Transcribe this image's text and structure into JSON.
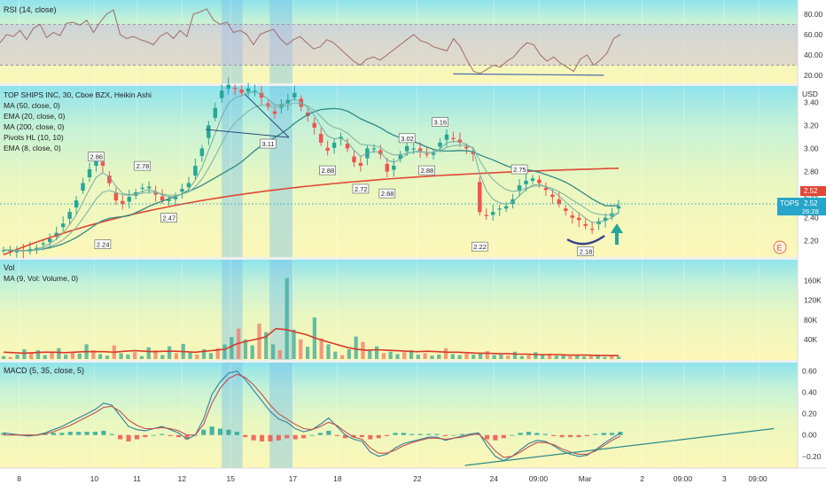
{
  "chart_data": [
    {
      "type": "line",
      "panel": "rsi",
      "title": "RSI (14, close)",
      "yticks": [
        20,
        40,
        60,
        80
      ],
      "ylim": [
        14,
        92
      ],
      "upper_band": 70,
      "lower_band": 30,
      "series": [
        {
          "color": "#a06a6a",
          "values": [
            52,
            60,
            58,
            64,
            55,
            66,
            70,
            57,
            62,
            59,
            71,
            72,
            69,
            74,
            62,
            72,
            80,
            84,
            60,
            56,
            58,
            55,
            53,
            50,
            58,
            62,
            56,
            64,
            58,
            80,
            82,
            85,
            74,
            70,
            72,
            62,
            64,
            60,
            50,
            60,
            63,
            65,
            56,
            50,
            55,
            58,
            52,
            46,
            48,
            55,
            52,
            46,
            40,
            34,
            30,
            36,
            38,
            35,
            40,
            45,
            50,
            55,
            60,
            54,
            52,
            48,
            46,
            44,
            56,
            48,
            35,
            24,
            22,
            26,
            30,
            28,
            34,
            38,
            46,
            52,
            50,
            40,
            34,
            38,
            32,
            28,
            24,
            36,
            40,
            30,
            35,
            42,
            56,
            60
          ]
        }
      ],
      "trendline": {
        "from": [
          0.568,
          21.5
        ],
        "to": [
          0.757,
          20.2
        ],
        "color": "#4a6aa8"
      }
    },
    {
      "type": "line",
      "panel": "price",
      "title": "TOP SHIPS INC, 30, Cboe BZX, Heikin Ashi",
      "unit": "USD",
      "legend": [
        "MA (50, close, 0)",
        "EMA (20, close, 0)",
        "MA (200, close, 0)",
        "Pivots HL (10, 10)",
        "EMA (8, close, 0)"
      ],
      "yticks": [
        2.2,
        2.4,
        2.6,
        2.8,
        3.0,
        3.2,
        3.4
      ],
      "ylim": [
        2.06,
        3.54
      ],
      "last_price": "2.52",
      "last_label": "TOPS",
      "countdown": "26:28",
      "last_price_tag": "2.52",
      "candles_close": [
        2.12,
        2.12,
        2.11,
        2.11,
        2.13,
        2.14,
        2.18,
        2.22,
        2.27,
        2.35,
        2.45,
        2.55,
        2.7,
        2.82,
        2.9,
        2.85,
        2.7,
        2.55,
        2.52,
        2.58,
        2.62,
        2.66,
        2.67,
        2.6,
        2.55,
        2.56,
        2.58,
        2.65,
        2.7,
        2.85,
        3.0,
        3.2,
        3.35,
        3.5,
        3.55,
        3.52,
        3.48,
        3.52,
        3.5,
        3.44,
        3.36,
        3.3,
        3.38,
        3.42,
        3.48,
        3.36,
        3.28,
        3.18,
        3.05,
        2.98,
        3.05,
        3.1,
        3.0,
        2.88,
        2.85,
        3.0,
        3.0,
        2.95,
        2.8,
        2.85,
        2.95,
        3.02,
        3.0,
        2.98,
        2.95,
        2.96,
        3.05,
        3.12,
        3.08,
        3.05,
        3.0,
        2.95,
        2.45,
        2.42,
        2.45,
        2.48,
        2.5,
        2.56,
        2.68,
        2.72,
        2.74,
        2.7,
        2.64,
        2.58,
        2.52,
        2.46,
        2.4,
        2.38,
        2.33,
        2.3,
        2.37,
        2.4,
        2.44,
        2.5
      ],
      "pivots": [
        {
          "label": "2.86",
          "value": 2.86,
          "pos": "high"
        },
        {
          "label": "2.78",
          "value": 2.78,
          "pos": "high"
        },
        {
          "label": "2.47",
          "value": 2.47,
          "pos": "low"
        },
        {
          "label": "2.24",
          "value": 2.24,
          "pos": "low"
        },
        {
          "label": "3.11",
          "value": 3.11,
          "pos": "low"
        },
        {
          "label": "2.88",
          "value": 2.88,
          "pos": "low"
        },
        {
          "label": "2.72",
          "value": 2.72,
          "pos": "low"
        },
        {
          "label": "2.68",
          "value": 2.68,
          "pos": "low"
        },
        {
          "label": "3.02",
          "value": 3.02,
          "pos": "high"
        },
        {
          "label": "2.88",
          "value": 2.88,
          "pos": "low"
        },
        {
          "label": "3.16",
          "value": 3.16,
          "pos": "high"
        },
        {
          "label": "2.75",
          "value": 2.75,
          "pos": "high"
        },
        {
          "label": "2.22",
          "value": 2.22,
          "pos": "low"
        },
        {
          "label": "2.18",
          "value": 2.18,
          "pos": "low"
        }
      ],
      "colors": {
        "up": "#26a69a",
        "down": "#ef5350",
        "ma200": "#e04836",
        "ma50": "#2f8a87",
        "ema": "#7fb7a8"
      }
    },
    {
      "type": "bar",
      "panel": "volume",
      "title": "Vol",
      "subtitle": "MA (9, Vol: Volume, 0)",
      "yticks": [
        "160K",
        "120K",
        "80K",
        "40K"
      ],
      "ytick_values": [
        160000,
        120000,
        80000,
        40000
      ],
      "ylim": [
        0,
        190000
      ],
      "values": [
        6000,
        4000,
        9000,
        20000,
        12000,
        18000,
        8000,
        15000,
        22000,
        9000,
        14000,
        11000,
        30000,
        18000,
        10000,
        7000,
        28000,
        12000,
        9000,
        14000,
        6000,
        24000,
        18000,
        8000,
        26000,
        12000,
        31000,
        14000,
        9000,
        20000,
        12000,
        22000,
        30000,
        45000,
        62000,
        40000,
        28000,
        72000,
        55000,
        30000,
        18000,
        165000,
        60000,
        40000,
        25000,
        85000,
        42000,
        30000,
        15000,
        8000,
        20000,
        46000,
        35000,
        18000,
        26000,
        12000,
        15000,
        10000,
        14000,
        18000,
        9000,
        12000,
        7000,
        9000,
        22000,
        10000,
        8000,
        11000,
        9000,
        12000,
        16000,
        8000,
        9000,
        7000,
        15000,
        6000,
        8000,
        14000,
        9000,
        11000,
        7000,
        10000,
        6000,
        8000,
        5000,
        7000,
        9000,
        4000,
        6000,
        5000
      ],
      "ma_values": [
        14000,
        13000,
        12000,
        13000,
        14000,
        14000,
        13000,
        14000,
        15000,
        15000,
        15000,
        14000,
        16000,
        17000,
        16000,
        15000,
        16000,
        16000,
        15000,
        14000,
        16000,
        18000,
        20000,
        30000,
        36000,
        40000,
        45000,
        62000,
        60000,
        55000,
        50000,
        42000,
        36000,
        30000,
        24000,
        20000,
        18000,
        19000,
        18000,
        17000,
        16000,
        15000,
        16000,
        15000,
        14000,
        14000,
        13000,
        12000,
        12000,
        11000,
        11000,
        10000,
        10000,
        9000,
        9000,
        9000,
        8000,
        8000,
        8000,
        7000,
        7000,
        7000
      ]
    },
    {
      "type": "line",
      "panel": "macd",
      "title": "MACD (5, 35, close, 5)",
      "yticks": [
        "0.60",
        "0.40",
        "0.20",
        "0.00",
        "−0.20"
      ],
      "ytick_values": [
        0.6,
        0.4,
        0.2,
        0.0,
        -0.2
      ],
      "ylim": [
        -0.31,
        0.68
      ],
      "series": [
        {
          "name": "MACD",
          "color": "#2f7f9e",
          "values": [
            0.02,
            0.01,
            0.0,
            -0.01,
            0.0,
            0.02,
            0.05,
            0.08,
            0.12,
            0.16,
            0.2,
            0.24,
            0.3,
            0.28,
            0.18,
            0.08,
            0.05,
            0.04,
            0.06,
            0.08,
            0.05,
            0.02,
            -0.04,
            0.0,
            0.15,
            0.38,
            0.5,
            0.58,
            0.6,
            0.52,
            0.42,
            0.32,
            0.22,
            0.15,
            0.12,
            0.06,
            0.03,
            0.05,
            0.1,
            0.16,
            0.08,
            0.0,
            -0.04,
            -0.06,
            -0.16,
            -0.2,
            -0.18,
            -0.12,
            -0.08,
            -0.06,
            -0.04,
            -0.02,
            -0.02,
            -0.05,
            -0.03,
            -0.01,
            0.01,
            0.02,
            -0.1,
            -0.2,
            -0.24,
            -0.2,
            -0.14,
            -0.08,
            -0.05,
            -0.06,
            -0.1,
            -0.15,
            -0.18,
            -0.2,
            -0.19,
            -0.14,
            -0.08,
            -0.03,
            0.02
          ]
        },
        {
          "name": "Signal",
          "color": "#c0504d",
          "values": [
            0.0,
            0.0,
            0.0,
            0.0,
            0.0,
            0.01,
            0.03,
            0.06,
            0.09,
            0.13,
            0.17,
            0.21,
            0.26,
            0.27,
            0.22,
            0.14,
            0.09,
            0.06,
            0.06,
            0.07,
            0.06,
            0.04,
            0.0,
            0.0,
            0.1,
            0.3,
            0.44,
            0.53,
            0.57,
            0.54,
            0.47,
            0.38,
            0.28,
            0.2,
            0.15,
            0.1,
            0.06,
            0.05,
            0.08,
            0.12,
            0.09,
            0.03,
            -0.02,
            -0.04,
            -0.12,
            -0.17,
            -0.17,
            -0.14,
            -0.1,
            -0.07,
            -0.05,
            -0.03,
            -0.03,
            -0.04,
            -0.03,
            -0.02,
            0.0,
            0.01,
            -0.06,
            -0.15,
            -0.21,
            -0.2,
            -0.16,
            -0.11,
            -0.07,
            -0.07,
            -0.09,
            -0.13,
            -0.16,
            -0.18,
            -0.18,
            -0.15,
            -0.1,
            -0.05,
            -0.01
          ]
        },
        {
          "name": "Histogram",
          "values": [
            0.02,
            0.01,
            0.0,
            -0.01,
            0.0,
            0.01,
            0.02,
            0.02,
            0.03,
            0.03,
            0.03,
            0.03,
            0.04,
            0.01,
            -0.04,
            -0.06,
            -0.04,
            -0.02,
            0.0,
            0.01,
            -0.01,
            -0.02,
            -0.04,
            0.0,
            0.05,
            0.08,
            0.06,
            0.05,
            0.03,
            -0.02,
            -0.05,
            -0.06,
            -0.06,
            -0.05,
            -0.03,
            -0.04,
            -0.03,
            0.0,
            0.02,
            0.04,
            -0.01,
            -0.03,
            -0.02,
            -0.02,
            -0.04,
            -0.03,
            -0.01,
            0.02,
            0.02,
            0.01,
            0.01,
            0.01,
            0.01,
            -0.01,
            0.0,
            0.01,
            0.01,
            0.01,
            -0.04,
            -0.05,
            -0.03,
            0.0,
            0.02,
            0.03,
            0.02,
            0.01,
            -0.01,
            -0.02,
            -0.02,
            -0.02,
            -0.01,
            0.01,
            0.02,
            0.02,
            0.03
          ]
        }
      ],
      "trendline": {
        "from": [
          0.583,
          -0.285
        ],
        "to": [
          0.97,
          0.06
        ],
        "color": "#2a8b8b"
      }
    }
  ],
  "x_axis": {
    "ticks": [
      "8",
      "10",
      "11",
      "12",
      "15",
      "17",
      "18",
      "22",
      "24",
      "09:00",
      "Mar",
      "2",
      "09:00",
      "3",
      "09:00"
    ],
    "tick_positions": [
      0.024,
      0.118,
      0.172,
      0.228,
      0.289,
      0.367,
      0.423,
      0.523,
      0.619,
      0.676,
      0.733,
      0.805,
      0.857,
      0.908,
      0.951
    ]
  },
  "markers": {
    "earnings": "E"
  },
  "colors": {
    "axis_text": "#333333",
    "grid_bg_top": "#8fe3ec",
    "grid_bg_bottom": "#fdf7b8",
    "highlight_band": "#7cc3e8",
    "tag_bg": "#26a6c9"
  }
}
